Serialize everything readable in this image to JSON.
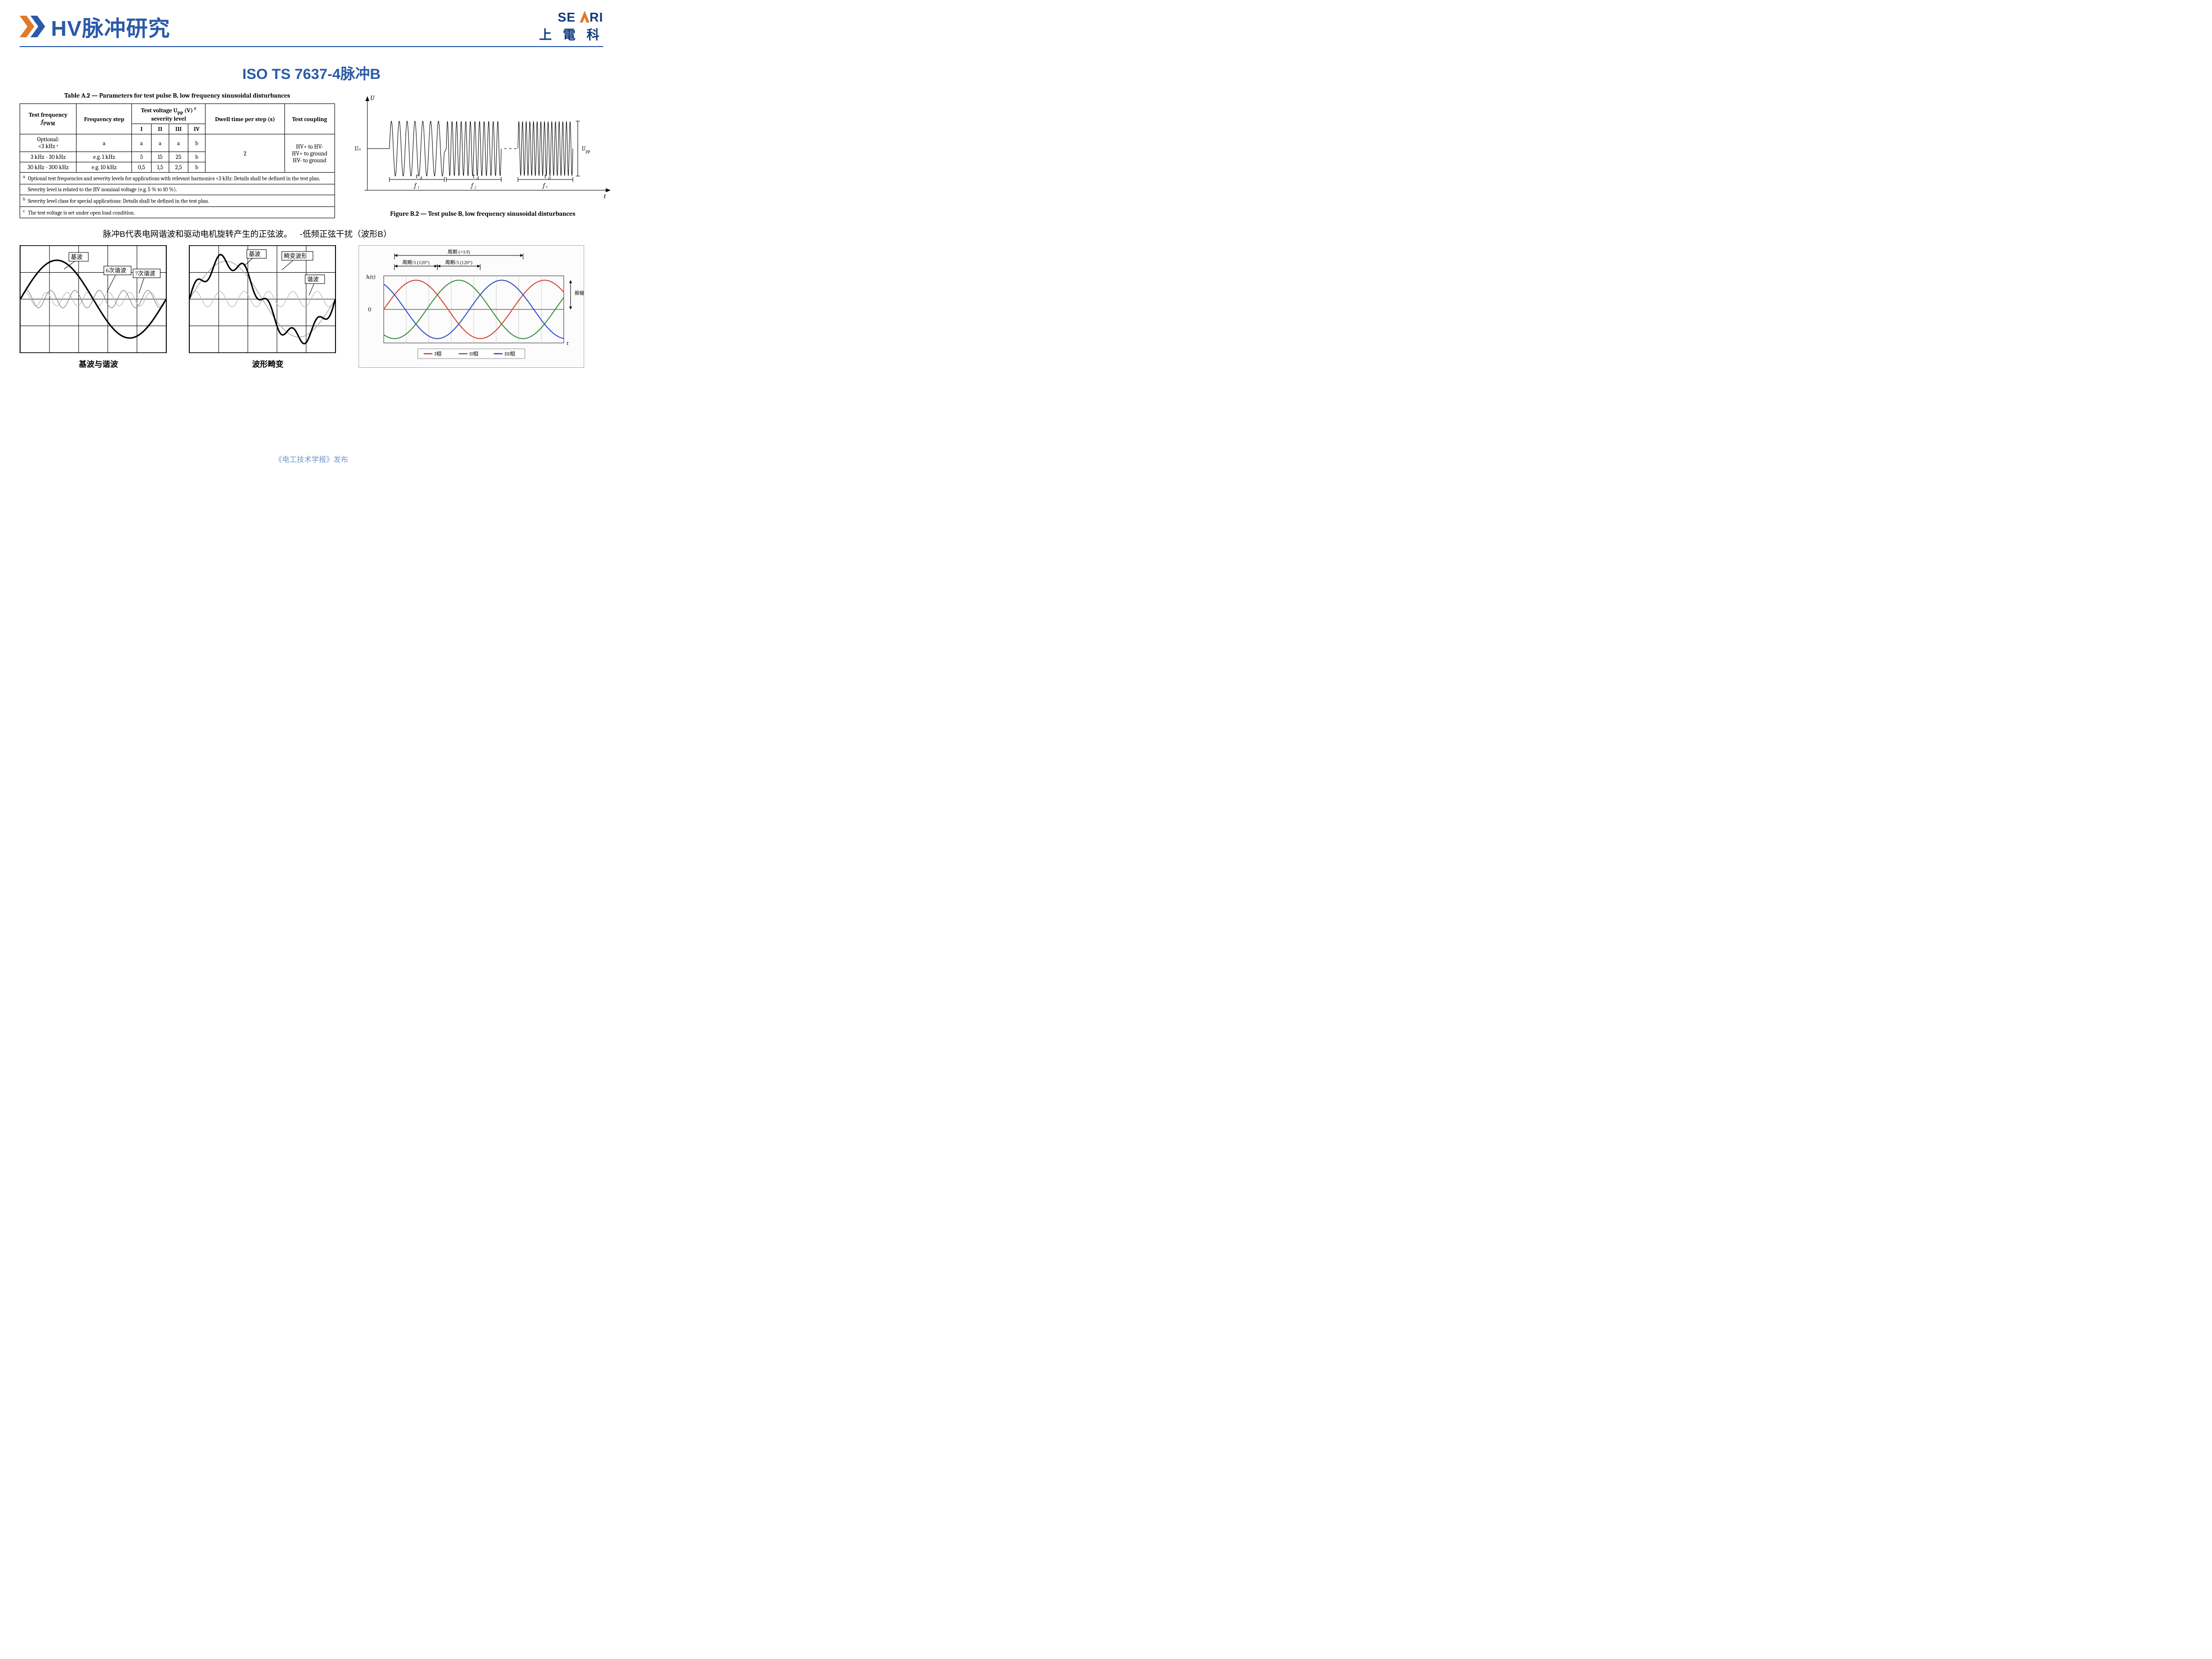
{
  "header": {
    "title": "HV脉冲研究",
    "logo_top_pre": "SE",
    "logo_top_accent": "A",
    "logo_top_post": "RI",
    "logo_bottom": "上 電 科",
    "chevron_color_1": "#e07a2a",
    "chevron_color_2": "#2a5aa8",
    "title_color": "#2a5aa8",
    "rule_color": "#2a5aa8"
  },
  "subtitle": "ISO TS 7637-4脉冲B",
  "tableA2": {
    "caption": "Table A.2 — Parameters for test pulse B, low frequency sinusoidal disturbances",
    "head": {
      "test_freq": "Test frequency",
      "test_freq_sym": "f",
      "test_freq_sub": "PWM",
      "freq_step": "Frequency step",
      "test_voltage": "Test voltage U",
      "test_voltage_sub": "pp",
      "test_voltage_unit": " (V)",
      "test_voltage_sup": "c",
      "severity": "severity level",
      "dwell": "Dwell time per step (s)",
      "coupling": "Test coupling",
      "levels": [
        "I",
        "II",
        "III",
        "IV"
      ]
    },
    "rows": [
      {
        "freq": "Optional:",
        "freq2": "<3 kHz ᵃ",
        "step": "a",
        "I": "a",
        "II": "a",
        "III": "a",
        "IV": "b"
      },
      {
        "freq": "3 kHz - 30 kHz",
        "step": "e.g. 1 kHz",
        "I": "5",
        "II": "15",
        "III": "25",
        "IV": "b"
      },
      {
        "freq": "30 kHz - 300 kHz",
        "step": "e.g. 10 kHz",
        "I": "0,5",
        "II": "1,5",
        "III": "2,5",
        "IV": "b"
      }
    ],
    "dwell_value": "2",
    "coupling_values": [
      "HV+ to HV-",
      "HV+ to ground",
      "HV- to ground"
    ],
    "footnotes": [
      {
        "sup": "a",
        "text": "Optional test frequencies and severity levels for applications with relevant harmonics <3 kHz: Details shall be defined in the test plan."
      },
      {
        "sup": "",
        "text": "Severity level is related to the HV nominal voltage (e.g. 5 % to 10 %)."
      },
      {
        "sup": "b",
        "text": "Severity level class for special applications: Details shall be defined in the test plan."
      },
      {
        "sup": "c",
        "text": "The test voltage is set under open load condition."
      }
    ]
  },
  "figB2": {
    "caption": "Figure B.2 — Test pulse B, low frequency sinusoidal disturbances",
    "y_label": "U",
    "y_nom": "Uₙ",
    "y_pp": "Upp",
    "x_label": "t",
    "td": "t_d",
    "f_labels": [
      "f ₁",
      "f ₂",
      "f ₓ"
    ],
    "bursts": [
      {
        "cycles": 7,
        "period": 16
      },
      {
        "cycles": 12,
        "period": 9.5
      },
      {
        "cycles": 15,
        "period": 7.2
      }
    ],
    "flat_len": 45,
    "gap": 4,
    "amp": 56,
    "burst_width": 112,
    "stroke": "#000000",
    "stroke_w": 1
  },
  "middle_text": {
    "left": "脉冲B代表电网谐波和驱动电机旋转产生的正弦波。",
    "right": "-低频正弦干扰（波形B）"
  },
  "harmonic_panels": {
    "panel1": {
      "caption": "基波与谐波",
      "labels": {
        "fund": "基波",
        "h6": "6次谐波",
        "h7": "7次谐波"
      },
      "curves": {
        "fund": {
          "amp": 80,
          "freq": 1,
          "stroke": "#000",
          "w": 3
        },
        "h6": {
          "amp": 18,
          "freq": 6,
          "stroke": "#888",
          "w": 1.3
        },
        "h7": {
          "amp": 14,
          "freq": 7,
          "stroke": "#bbb",
          "w": 1.3
        }
      }
    },
    "panel2": {
      "caption": "波形畸变",
      "labels": {
        "fund": "基波",
        "dist": "畸变波形",
        "harm": "谐波"
      },
      "curves": {
        "fund": {
          "amp": 78,
          "freq": 1,
          "stroke": "#999",
          "w": 1.3
        },
        "h": {
          "amp": 16,
          "freq": 6,
          "stroke": "#bbb",
          "w": 1.3
        },
        "dist": {
          "stroke": "#000",
          "w": 3
        }
      }
    },
    "grid": {
      "cols": 5,
      "rows": 4,
      "stroke": "#000",
      "w": 1
    }
  },
  "three_phase": {
    "period_label": "周期 (=1/f)",
    "third_labels": [
      "周期/3 (120°)",
      "周期/3 (120°)"
    ],
    "y_label": "h(t)",
    "amp_label": "振幅/2",
    "zero": "0",
    "x_label": "t",
    "legend": [
      "I相",
      "II相",
      "III相"
    ],
    "colors": [
      "#d8443a",
      "#3c8f3c",
      "#3050c0"
    ],
    "amp": 60,
    "cycles": 1.4,
    "phase_step_deg": 120,
    "bg": "#fcfcfc",
    "frame": "#555",
    "grid": "#cfcfcf"
  },
  "footer": "《电工技术学报》发布"
}
